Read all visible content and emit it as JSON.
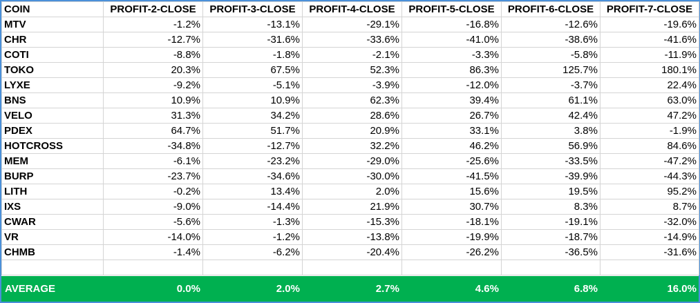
{
  "table": {
    "headers": [
      "COIN",
      "PROFIT-2-CLOSE",
      "PROFIT-3-CLOSE",
      "PROFIT-4-CLOSE",
      "PROFIT-5-CLOSE",
      "PROFIT-6-CLOSE",
      "PROFIT-7-CLOSE"
    ],
    "rows": [
      [
        "MTV",
        "-1.2%",
        "-13.1%",
        "-29.1%",
        "-16.8%",
        "-12.6%",
        "-19.6%"
      ],
      [
        "CHR",
        "-12.7%",
        "-31.6%",
        "-33.6%",
        "-41.0%",
        "-38.6%",
        "-41.6%"
      ],
      [
        "COTI",
        "-8.8%",
        "-1.8%",
        "-2.1%",
        "-3.3%",
        "-5.8%",
        "-11.9%"
      ],
      [
        "TOKO",
        "20.3%",
        "67.5%",
        "52.3%",
        "86.3%",
        "125.7%",
        "180.1%"
      ],
      [
        "LYXE",
        "-9.2%",
        "-5.1%",
        "-3.9%",
        "-12.0%",
        "-3.7%",
        "22.4%"
      ],
      [
        "BNS",
        "10.9%",
        "10.9%",
        "62.3%",
        "39.4%",
        "61.1%",
        "63.0%"
      ],
      [
        "VELO",
        "31.3%",
        "34.2%",
        "28.6%",
        "26.7%",
        "42.4%",
        "47.2%"
      ],
      [
        "PDEX",
        "64.7%",
        "51.7%",
        "20.9%",
        "33.1%",
        "3.8%",
        "-1.9%"
      ],
      [
        "HOTCROSS",
        "-34.8%",
        "-12.7%",
        "32.2%",
        "46.2%",
        "56.9%",
        "84.6%"
      ],
      [
        "MEM",
        "-6.1%",
        "-23.2%",
        "-29.0%",
        "-25.6%",
        "-33.5%",
        "-47.2%"
      ],
      [
        "BURP",
        "-23.7%",
        "-34.6%",
        "-30.0%",
        "-41.5%",
        "-39.9%",
        "-44.3%"
      ],
      [
        "LITH",
        "-0.2%",
        "13.4%",
        "2.0%",
        "15.6%",
        "19.5%",
        "95.2%"
      ],
      [
        "IXS",
        "-9.0%",
        "-14.4%",
        "21.9%",
        "30.7%",
        "8.3%",
        "8.7%"
      ],
      [
        "CWAR",
        "-5.6%",
        "-1.3%",
        "-15.3%",
        "-18.1%",
        "-19.1%",
        "-32.0%"
      ],
      [
        "VR",
        "-14.0%",
        "-1.2%",
        "-13.8%",
        "-19.9%",
        "-18.7%",
        "-14.9%"
      ],
      [
        "CHMB",
        "-1.4%",
        "-6.2%",
        "-20.4%",
        "-26.2%",
        "-36.5%",
        "-31.6%"
      ]
    ]
  },
  "average": {
    "label": "AVERAGE",
    "values": [
      "0.0%",
      "2.0%",
      "2.7%",
      "4.6%",
      "6.8%",
      "16.0%"
    ]
  },
  "colors": {
    "average_bg": "#00b050",
    "border": "#4a90d9",
    "gridline": "#d4d4d4"
  }
}
